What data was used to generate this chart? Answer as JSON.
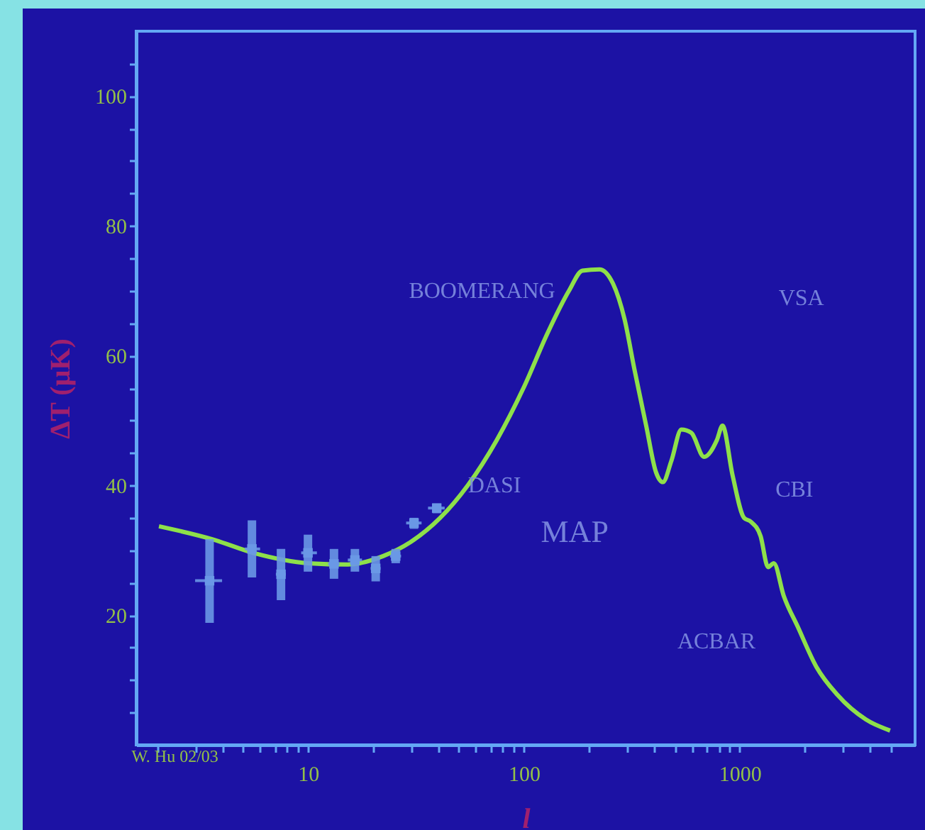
{
  "chart_data": {
    "type": "line",
    "xlabel": "l",
    "ylabel": "ΔT (μK)",
    "log": "x",
    "grid": false,
    "xlim": [
      1.6,
      6500
    ],
    "ylim": [
      0,
      110
    ],
    "xticks": [
      {
        "value": 2,
        "label": null
      },
      {
        "value": 3,
        "label": null
      },
      {
        "value": 4,
        "label": null
      },
      {
        "value": 5,
        "label": null
      },
      {
        "value": 6,
        "label": null
      },
      {
        "value": 7,
        "label": null
      },
      {
        "value": 8,
        "label": null
      },
      {
        "value": 9,
        "label": null
      },
      10,
      {
        "value": 20,
        "label": null
      },
      {
        "value": 30,
        "label": null
      },
      {
        "value": 40,
        "label": null
      },
      {
        "value": 50,
        "label": null
      },
      {
        "value": 60,
        "label": null
      },
      {
        "value": 70,
        "label": null
      },
      {
        "value": 80,
        "label": null
      },
      {
        "value": 90,
        "label": null
      },
      100,
      {
        "value": 200,
        "label": null
      },
      {
        "value": 300,
        "label": null
      },
      {
        "value": 400,
        "label": null
      },
      {
        "value": 500,
        "label": null
      },
      {
        "value": 600,
        "label": null
      },
      {
        "value": 700,
        "label": null
      },
      {
        "value": 800,
        "label": null
      },
      {
        "value": 900,
        "label": null
      },
      1000,
      {
        "value": 2000,
        "label": null
      },
      {
        "value": 3000,
        "label": null
      },
      {
        "value": 4000,
        "label": null
      },
      {
        "value": 5000,
        "label": null
      }
    ],
    "yticks": [
      {
        "value": 5,
        "label": null
      },
      {
        "value": 10,
        "label": null
      },
      {
        "value": 15,
        "label": null
      },
      20,
      {
        "value": 25,
        "label": null
      },
      {
        "value": 30,
        "label": null
      },
      {
        "value": 35,
        "label": null
      },
      40,
      {
        "value": 45,
        "label": null
      },
      {
        "value": 50,
        "label": null
      },
      {
        "value": 55,
        "label": null
      },
      60,
      {
        "value": 65,
        "label": null
      },
      {
        "value": 70,
        "label": null
      },
      {
        "value": 75,
        "label": null
      },
      80,
      {
        "value": 85,
        "label": null
      },
      {
        "value": 90,
        "label": null
      },
      {
        "value": 95,
        "label": null
      },
      100,
      {
        "value": 105,
        "label": null
      }
    ],
    "series": [
      {
        "type": "scatter",
        "color": "#6a98e6",
        "marker": "square",
        "x": [
          3.5,
          5.5,
          7.5,
          10,
          13.2,
          16.5,
          20.6,
          25.5,
          31,
          39.5
        ],
        "values": [
          25.3,
          30.2,
          26.3,
          29.6,
          27.9,
          28.5,
          27.2,
          29.1,
          34.2,
          36.5
        ],
        "errors": [
          [
            18.8,
            31.7
          ],
          [
            25.8,
            34.6
          ],
          [
            22.3,
            30.2
          ],
          [
            26.7,
            32.4
          ],
          [
            25.6,
            30.2
          ],
          [
            26.7,
            30.2
          ],
          [
            25.2,
            29.1
          ],
          [
            28.0,
            30.2
          ],
          [
            33.3,
            35.0
          ],
          [
            35.7,
            37.2
          ]
        ],
        "xerrors": [
          [
            3.0,
            4.0
          ],
          [
            5.1,
            6.0
          ],
          [
            7.1,
            7.9
          ],
          [
            9.3,
            11
          ],
          [
            12.4,
            14
          ],
          [
            15.3,
            17.8
          ],
          [
            19.5,
            21.7
          ],
          [
            24,
            27
          ],
          [
            28.5,
            33.6
          ],
          [
            36,
            43
          ]
        ]
      },
      {
        "color": "#8ee04a",
        "x": [
          2.04,
          3.6,
          5.7,
          10,
          15.3,
          22.3,
          30,
          41,
          55,
          75,
          100,
          129,
          162,
          187,
          224,
          259,
          293,
          325,
          369,
          410,
          441,
          483,
          537,
          597,
          684,
          785,
          833,
          927,
          1048,
          1127,
          1250,
          1355,
          1440,
          1600,
          1860,
          2270,
          2840,
          3850,
          4980
        ],
        "values": [
          33.7,
          31.7,
          29.5,
          28.0,
          27.8,
          29.1,
          31.3,
          35.0,
          40.0,
          47.0,
          55.1,
          63.5,
          70.0,
          73.1,
          73.3,
          71.1,
          65.6,
          58.0,
          49.2,
          42.0,
          40.5,
          43.8,
          48.6,
          48.1,
          44.4,
          47.0,
          49.2,
          41.6,
          35.0,
          34.4,
          32.2,
          27.4,
          28.0,
          23.0,
          18.2,
          12.0,
          7.7,
          3.9,
          2.2
        ]
      }
    ],
    "annotations": [
      "W. Hu 02/03",
      "MAP",
      "DASI",
      "CBI",
      "VSA",
      "ACBAR",
      "BOOMERANG"
    ]
  }
}
